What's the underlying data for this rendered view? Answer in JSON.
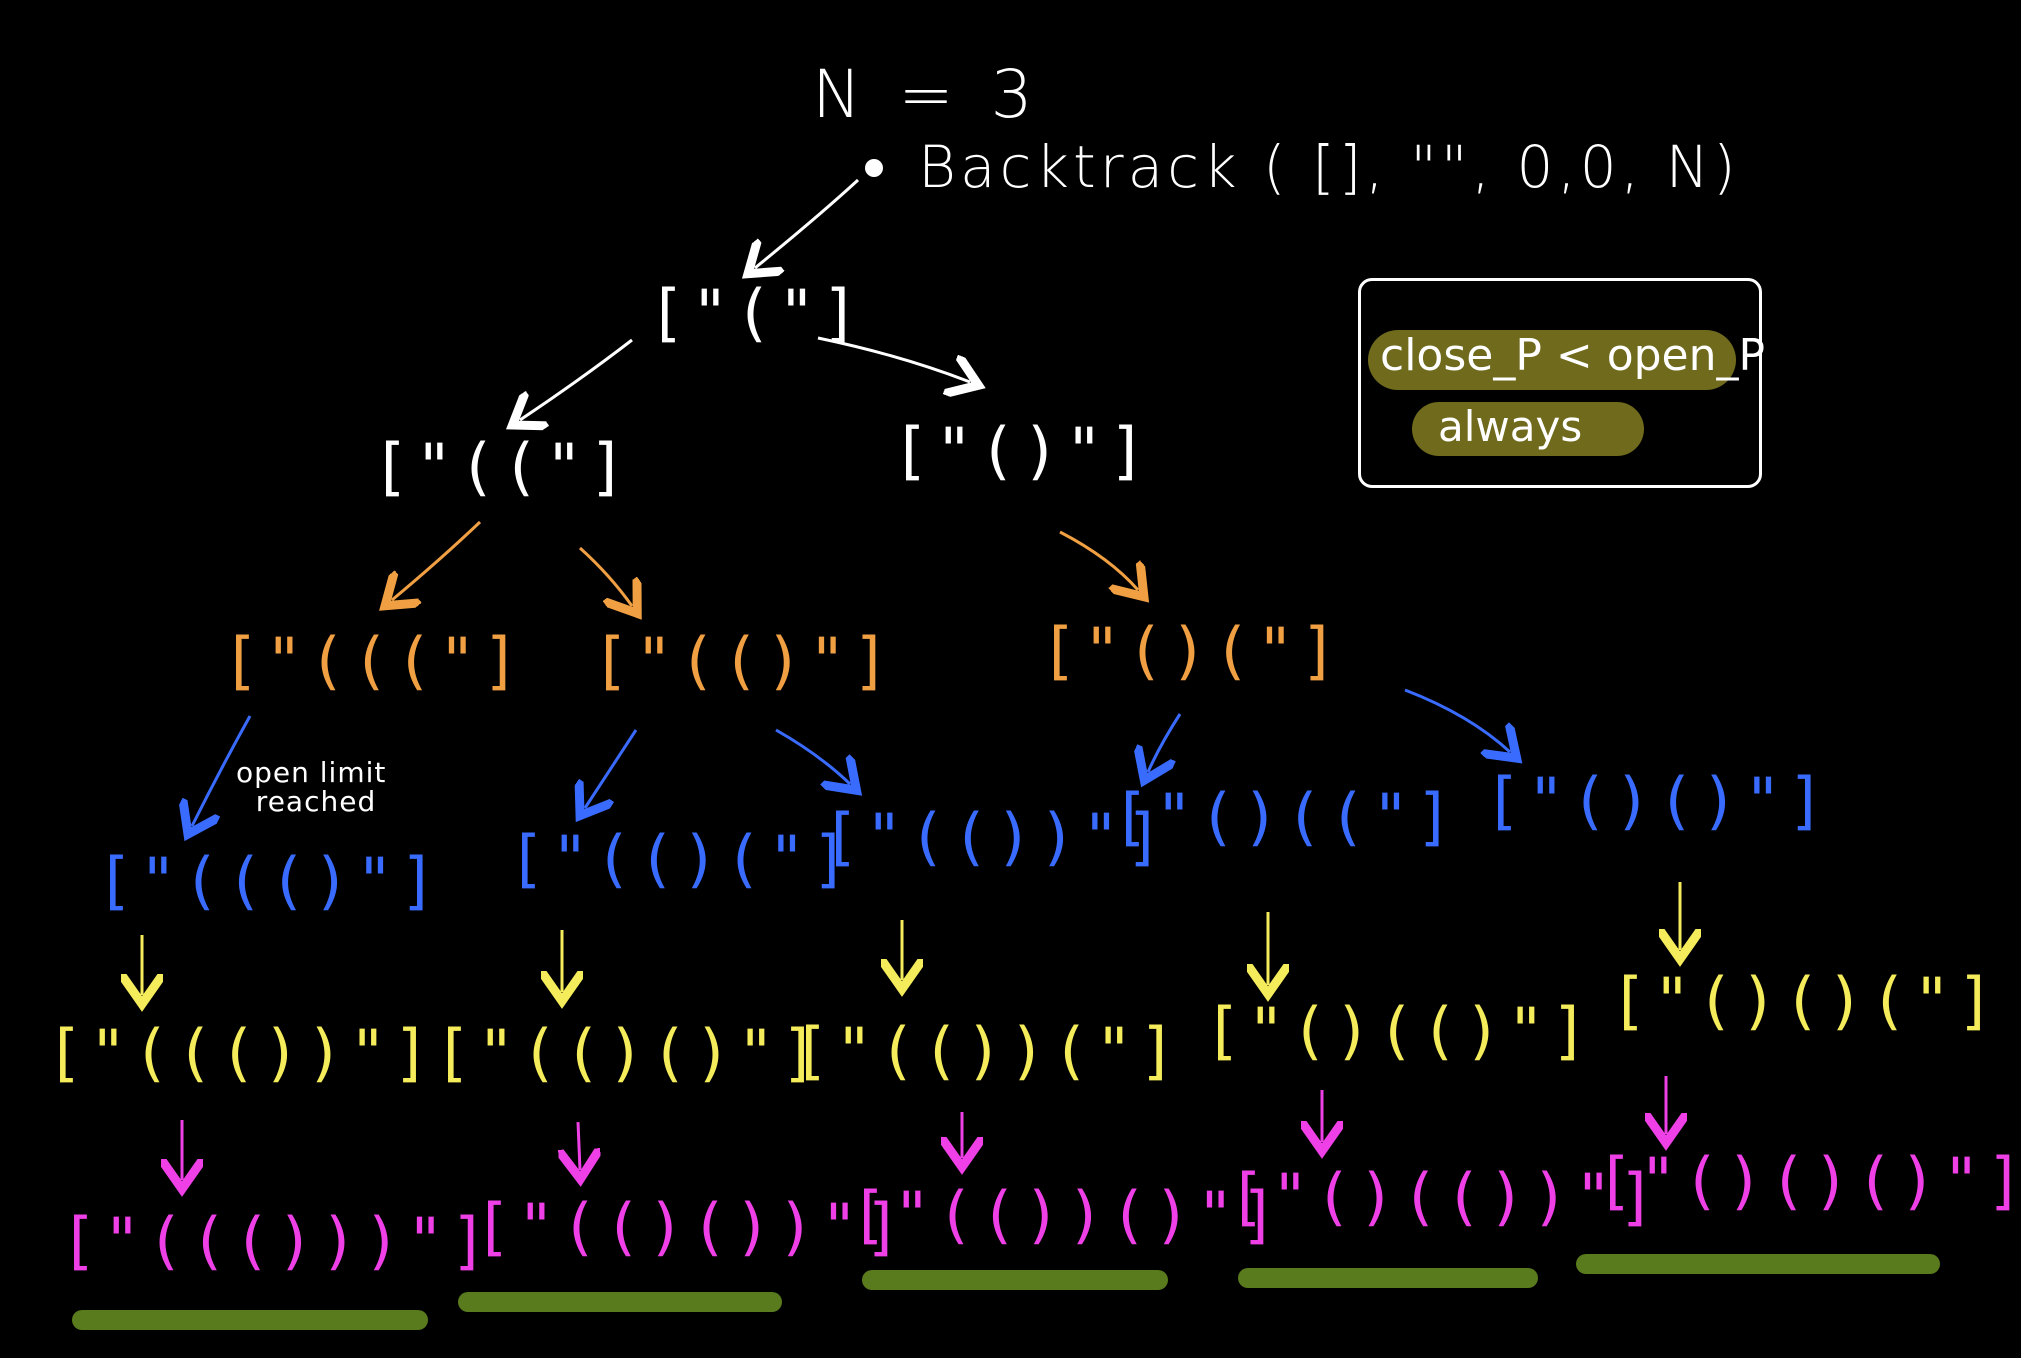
{
  "title": "N = 3",
  "root_call": "Backtrack ( [], \"\", 0,0, N)",
  "legend": {
    "condition": "close_P < open_P",
    "always": "always"
  },
  "note": "open limit\n  reached",
  "colors": {
    "level0": "#ffffff",
    "level1": "#f0a042",
    "level2": "#3a6bff",
    "level3": "#f4ec5a",
    "level4": "#ee40e6",
    "final_close": "#b6e24a",
    "highlight": "#6f6a1c",
    "result_underline": "#5a7a1e"
  },
  "nodes": {
    "n1": "[\"(\"]",
    "n2a": "[\"((\"]",
    "n2b": "[\"()\"]",
    "n3a": "[\"(((\"]",
    "n3b": "[\"(()\"]",
    "n3c": "[\"()(\"]",
    "n4a": "[\"((()\"]",
    "n4b": "[\"(()(\"]",
    "n4c": "[\"(())\"]",
    "n4d": "[\"()((\"]",
    "n4e": "[\"()()\"]",
    "n5a": "[\"((())\"]",
    "n5b": "[\"(()()\"]",
    "n5c": "[\"(())(\"]",
    "n5d": "[\"()(()\"]",
    "n5e": "[\"()()(\"]",
    "r1": "[\"((()))\"]",
    "r2": "[\"(()())\"]",
    "r3": "[\"(())()\"]",
    "r4": "[\"()(())\"]",
    "r5": "[\"()()()\"]"
  }
}
